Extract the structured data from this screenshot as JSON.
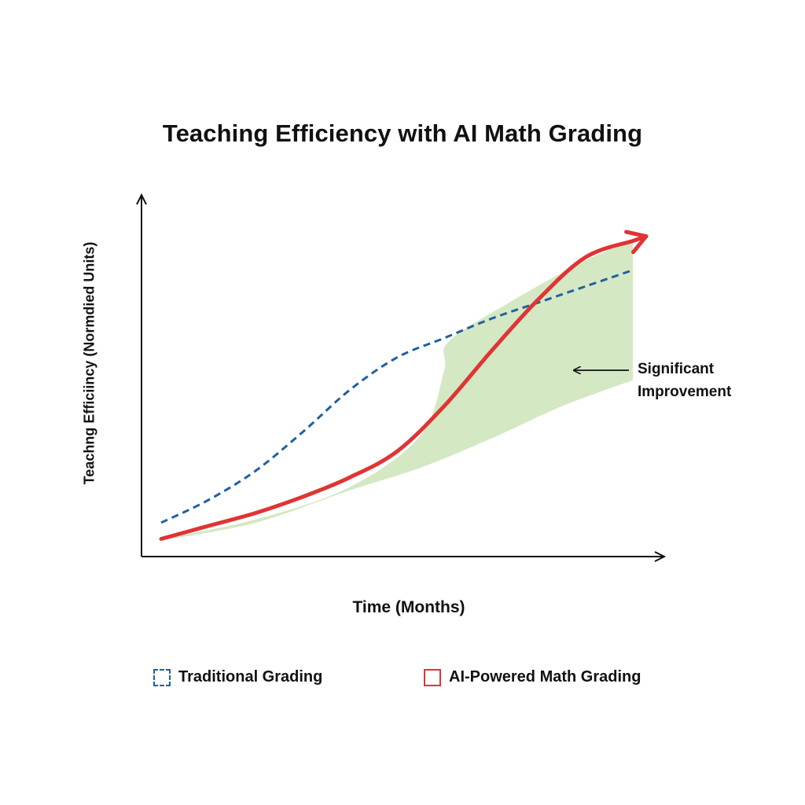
{
  "chart_data": {
    "type": "line",
    "title": "Teaching Efficiency with AI Math Grading",
    "xlabel": "Time (Months)",
    "ylabel": "Teachng Efficiincy (Normdied Units)",
    "xlim": [
      0,
      10
    ],
    "ylim": [
      0,
      10
    ],
    "grid": false,
    "legend_position": "bottom",
    "x": [
      0,
      1,
      2,
      3,
      4,
      5,
      6,
      7,
      8,
      9,
      10
    ],
    "series": [
      {
        "name": "Traditional Grading",
        "style": "dashed",
        "color": "#2060a0",
        "values": [
          0.9,
          1.6,
          2.5,
          3.7,
          5.0,
          6.0,
          6.6,
          7.2,
          7.7,
          8.2,
          8.7
        ]
      },
      {
        "name": "AI-Powered Math Grading",
        "style": "solid",
        "color": "#e03434",
        "values": [
          0.4,
          0.8,
          1.2,
          1.7,
          2.3,
          3.1,
          4.5,
          6.2,
          7.8,
          9.1,
          9.6
        ]
      }
    ],
    "annotation": {
      "lines": [
        "Significant",
        "Improvement"
      ]
    },
    "colors": {
      "fill": "#cfe6bd",
      "axis": "#111111"
    }
  }
}
